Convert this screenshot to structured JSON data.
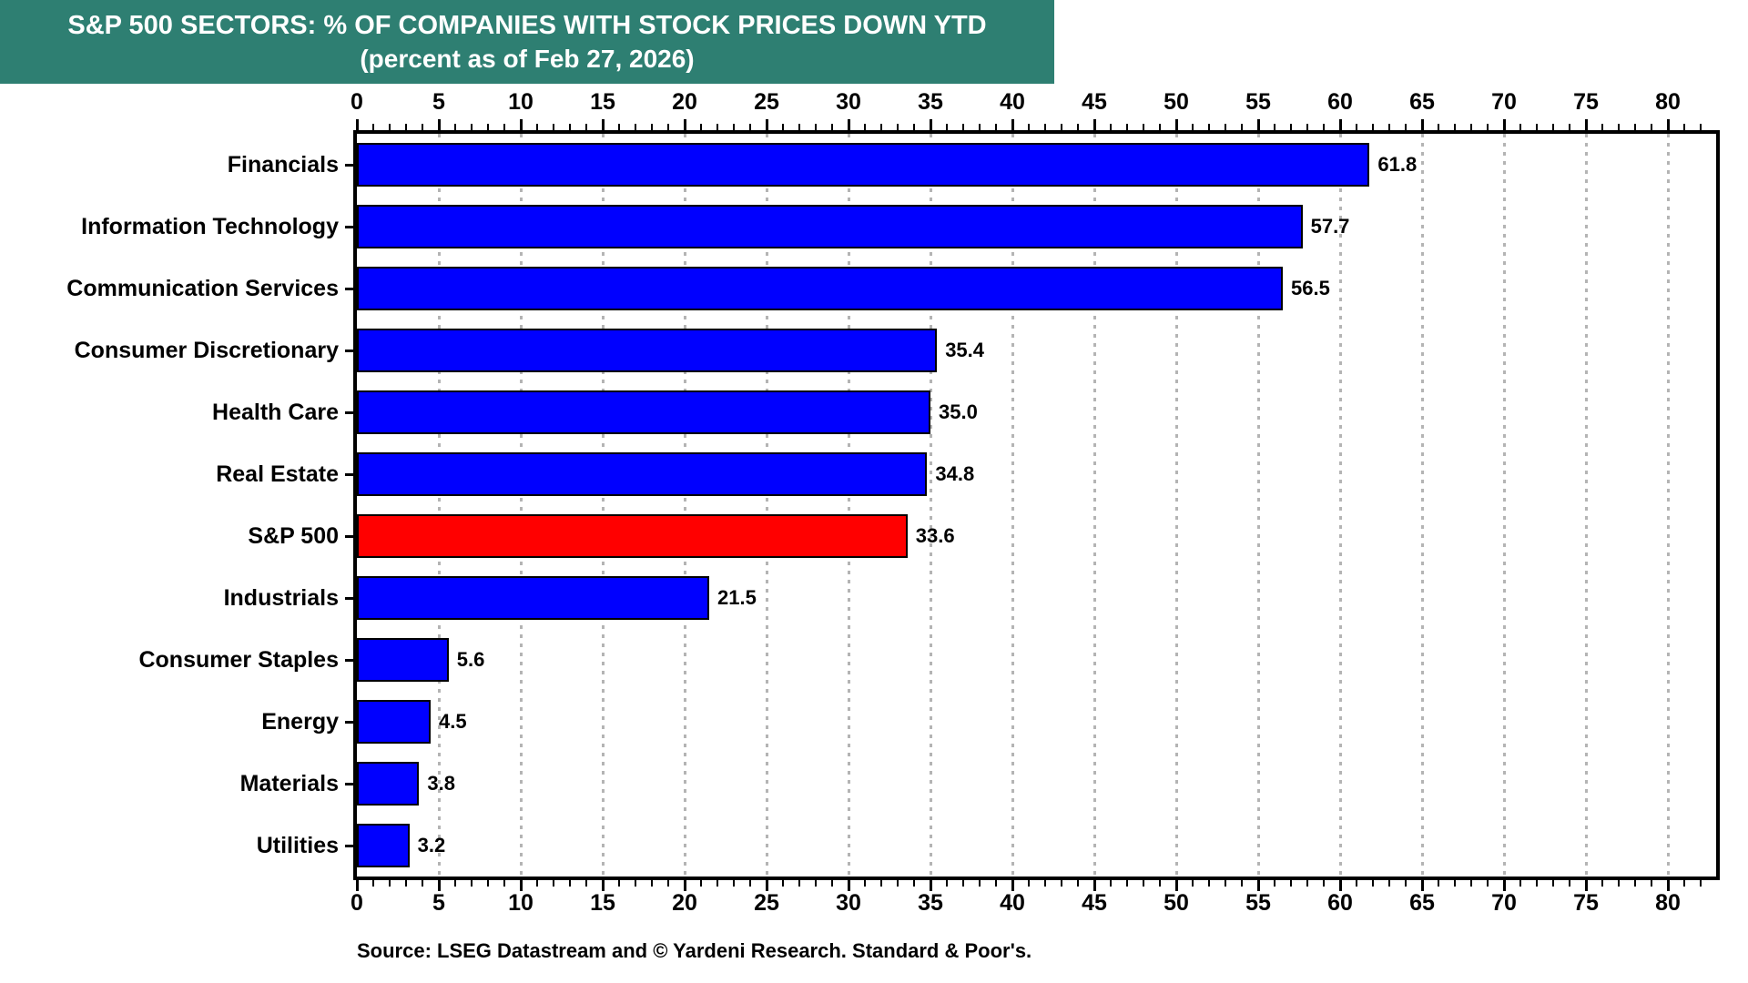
{
  "header": {
    "title": "S&P 500 SECTORS: % OF COMPANIES WITH STOCK PRICES DOWN YTD",
    "subtitle": "(percent as of Feb 27, 2026)",
    "bg_color": "#2e7f72",
    "text_color": "#ffffff"
  },
  "chart_data": {
    "type": "bar",
    "orientation": "horizontal",
    "title": "S&P 500 SECTORS: % OF COMPANIES WITH STOCK PRICES DOWN YTD",
    "subtitle": "(percent as of Feb 27, 2026)",
    "categories": [
      "Financials",
      "Information Technology",
      "Communication Services",
      "Consumer Discretionary",
      "Health Care",
      "Real Estate",
      "S&P 500",
      "Industrials",
      "Consumer Staples",
      "Energy",
      "Materials",
      "Utilities"
    ],
    "values": [
      61.8,
      57.7,
      56.5,
      35.4,
      35.0,
      34.8,
      33.6,
      21.5,
      5.6,
      4.5,
      3.8,
      3.2
    ],
    "value_labels": [
      "61.8",
      "57.7",
      "56.5",
      "35.4",
      "35.0",
      "34.8",
      "33.6",
      "21.5",
      "5.6",
      "4.5",
      "3.8",
      "3.2"
    ],
    "highlight_category": "S&P 500",
    "bar_color": "#0000ff",
    "highlight_color": "#ff0000",
    "bar_border_color": "#000000",
    "xlabel": "",
    "ylabel": "",
    "xlim": [
      0,
      83
    ],
    "x_ticks": [
      0,
      5,
      10,
      15,
      20,
      25,
      30,
      35,
      40,
      45,
      50,
      55,
      60,
      65,
      70,
      75,
      80
    ],
    "x_minor_tick_step": 1,
    "tick_label_positions": "top and bottom",
    "grid": {
      "axis": "x",
      "style": "dotted",
      "color": "#b4b4b4"
    },
    "legend": "none"
  },
  "source": {
    "text": "Source: LSEG Datastream and © Yardeni Research. Standard & Poor's."
  }
}
